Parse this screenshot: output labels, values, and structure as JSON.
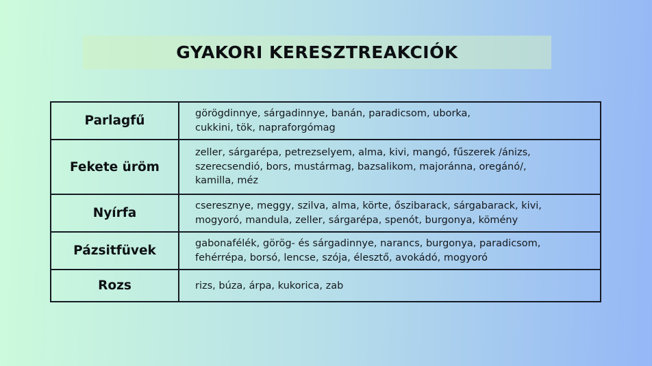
{
  "header": {
    "title": "GYAKORI KERESZTREAKCIÓK"
  },
  "table": {
    "rows": [
      {
        "allergen": "Parlagfű",
        "cross_reactions": "görögdinnye, sárgadinnye, banán, paradicsom, uborka,\ncukkini, tök, napraforgómag"
      },
      {
        "allergen": "Fekete üröm",
        "cross_reactions": "zeller, sárgarépa, petrezselyem, alma, kivi, mangó, fűszerek /ánizs,\nszerecsendió, bors, mustármag, bazsalikom, majoránna, oregánó/,\nkamilla, méz"
      },
      {
        "allergen": "Nyírfa",
        "cross_reactions": "cseresznye, meggy, szilva, alma, körte, őszibarack, sárgabarack, kivi,\nmogyoró, mandula, zeller, sárgarépa, spenót, burgonya, kömény"
      },
      {
        "allergen": "Pázsitfüvek",
        "cross_reactions": "gabonafélék, görög- és sárgadinnye, narancs, burgonya, paradicsom,\nfehérrépa, borsó, lencse, szója, élesztő, avokádó, mogyoró"
      },
      {
        "allergen": "Rozs",
        "cross_reactions": "rizs, búza, árpa, kukorica, zab"
      }
    ]
  },
  "colors": {
    "background_gradient_left": "#ccfbdb",
    "background_gradient_middle": "#b7dfe9",
    "background_gradient_right": "#95b7f6",
    "banner_overlay": "#d2f0be",
    "table_border": "#161a24",
    "text": "#14171b"
  }
}
